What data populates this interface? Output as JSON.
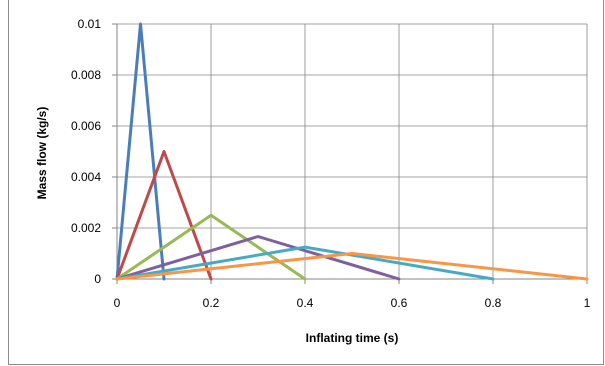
{
  "chart_data": {
    "type": "line",
    "xlabel": "Inflating time (s)",
    "ylabel": "Mass flow (kg/s)",
    "xlim": [
      0,
      1
    ],
    "ylim": [
      0,
      0.01
    ],
    "x_ticks": [
      "0",
      "0.2",
      "0.4",
      "0.6",
      "0.8",
      "1"
    ],
    "y_ticks": [
      "0",
      "0.002",
      "0.004",
      "0.006",
      "0.008",
      "0.01"
    ],
    "grid": true,
    "legend": "none",
    "series": [
      {
        "color": "#4a7ebb",
        "points": [
          [
            0,
            0
          ],
          [
            0.05,
            0.01
          ],
          [
            0.1,
            0
          ]
        ]
      },
      {
        "color": "#be4b48",
        "points": [
          [
            0,
            0
          ],
          [
            0.1,
            0.005
          ],
          [
            0.2,
            0
          ]
        ]
      },
      {
        "color": "#98b954",
        "points": [
          [
            0,
            0
          ],
          [
            0.2,
            0.0025
          ],
          [
            0.4,
            0
          ]
        ]
      },
      {
        "color": "#7d60a0",
        "points": [
          [
            0,
            0
          ],
          [
            0.3,
            0.001667
          ],
          [
            0.6,
            0
          ]
        ]
      },
      {
        "color": "#46aac5",
        "points": [
          [
            0,
            0
          ],
          [
            0.4,
            0.00125
          ],
          [
            0.8,
            0
          ]
        ]
      },
      {
        "color": "#f79646",
        "points": [
          [
            0,
            0
          ],
          [
            0.5,
            0.001
          ],
          [
            1,
            0
          ]
        ]
      }
    ]
  }
}
